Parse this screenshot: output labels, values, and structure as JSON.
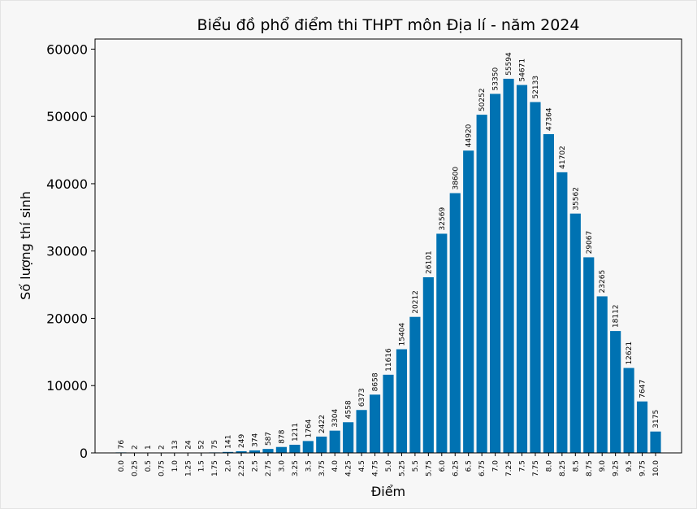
{
  "chart_data": {
    "type": "bar",
    "title": "Biểu đồ phổ điểm thi THPT môn Địa lí - năm 2024",
    "xlabel": "Điểm",
    "ylabel": "Số lượng thí sinh",
    "ylim": [
      0,
      61500
    ],
    "yticks": [
      0,
      10000,
      20000,
      30000,
      40000,
      50000,
      60000
    ],
    "categories": [
      "0.0",
      "0.25",
      "0.5",
      "0.75",
      "1.0",
      "1.25",
      "1.5",
      "1.75",
      "2.0",
      "2.25",
      "2.5",
      "2.75",
      "3.0",
      "3.25",
      "3.5",
      "3.75",
      "4.0",
      "4.25",
      "4.5",
      "4.75",
      "5.0",
      "5.25",
      "5.5",
      "5.75",
      "6.0",
      "6.25",
      "6.5",
      "6.75",
      "7.0",
      "7.25",
      "7.5",
      "7.75",
      "8.0",
      "8.25",
      "8.5",
      "8.75",
      "9.0",
      "9.25",
      "9.5",
      "9.75",
      "10.0"
    ],
    "values": [
      76,
      2,
      1,
      2,
      13,
      24,
      52,
      75,
      141,
      249,
      374,
      587,
      878,
      1211,
      1764,
      2422,
      3304,
      4558,
      6373,
      8658,
      11616,
      15404,
      20212,
      26101,
      32569,
      38600,
      44920,
      50252,
      53350,
      55594,
      54671,
      52133,
      47364,
      41702,
      35562,
      29067,
      23265,
      18112,
      12621,
      7647,
      3175
    ],
    "bar_color": "#0072b2",
    "grid": false,
    "data_labels": true
  }
}
